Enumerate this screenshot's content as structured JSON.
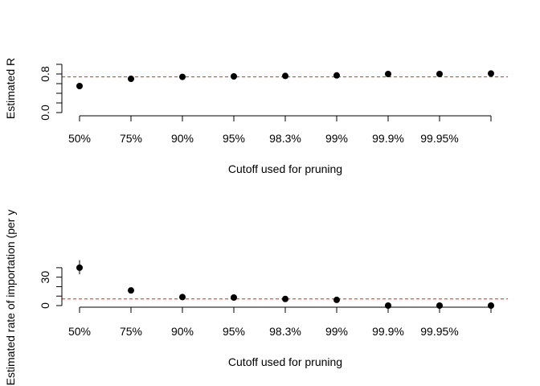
{
  "chart_data": [
    {
      "type": "scatter",
      "categories": [
        "50%",
        "75%",
        "90%",
        "95%",
        "98.3%",
        "99%",
        "99.9%",
        "99.95%",
        ""
      ],
      "x_tick_labels": [
        "50%",
        "75%",
        "90%",
        "95%",
        "98.3%",
        "99%",
        "99.9%",
        "99.95%"
      ],
      "values": [
        0.55,
        0.7,
        0.74,
        0.75,
        0.76,
        0.77,
        0.8,
        0.8,
        0.81
      ],
      "errors_lower": [
        null,
        null,
        null,
        null,
        null,
        null,
        null,
        null,
        null
      ],
      "errors_upper": [
        null,
        null,
        null,
        null,
        null,
        null,
        null,
        null,
        null
      ],
      "reference_line": 0.74,
      "reference_color": "#d62728",
      "ylim": [
        0.0,
        1.0
      ],
      "y_ticks": [
        0.0,
        0.2,
        0.4,
        0.6,
        0.8,
        1.0
      ],
      "y_tick_labels": [
        "0.0",
        "0.8"
      ],
      "ylabel": "Estimated R",
      "xlabel": "Cutoff used for pruning",
      "grid": false
    },
    {
      "type": "scatter",
      "categories": [
        "50%",
        "75%",
        "90%",
        "95%",
        "98.3%",
        "99%",
        "99.9%",
        "99.95%",
        ""
      ],
      "x_tick_labels": [
        "50%",
        "75%",
        "90%",
        "95%",
        "98.3%",
        "99%",
        "99.9%",
        "99.95%"
      ],
      "values": [
        40,
        16,
        9,
        8.5,
        7,
        6,
        0,
        0,
        0
      ],
      "errors_lower": [
        33,
        14,
        8,
        7.5,
        6.5,
        5,
        null,
        null,
        null
      ],
      "errors_upper": [
        48,
        18,
        10,
        9.5,
        7.5,
        7,
        null,
        null,
        null
      ],
      "reference_line": 7,
      "reference_color": "#d62728",
      "ylim": [
        0,
        45
      ],
      "y_ticks": [
        0,
        10,
        20,
        30,
        40
      ],
      "y_tick_labels": [
        "0",
        "30"
      ],
      "ylabel": "Estimated rate of importation (per y",
      "xlabel": "Cutoff used for pruning",
      "grid": false
    }
  ]
}
